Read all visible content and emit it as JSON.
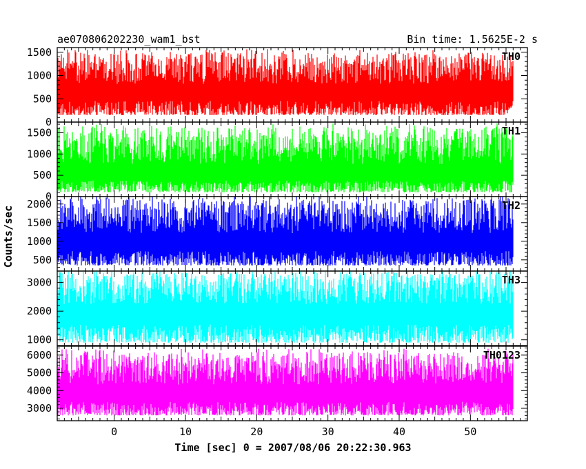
{
  "header": {
    "left_title": "ae070806202230_wam1_bst",
    "right_title": "Bin time: 1.5625E-2 s"
  },
  "xlabel": "Time [sec] 0 = 2007/08/06 20:22:30.963",
  "ylabel": "Counts/sec",
  "chart_data": [
    {
      "type": "line",
      "name": "TH0",
      "color": "#ff0000",
      "xlim": [
        -8,
        58
      ],
      "ylim": [
        0,
        1600
      ],
      "yticks": [
        0,
        500,
        1000,
        1500
      ],
      "ytick_labels": [
        "0",
        "500",
        "1000",
        "1500"
      ],
      "x_start": -8,
      "x_end": 56,
      "bin_time": 0.015625,
      "low": 150,
      "mean": 700,
      "high": 1500
    },
    {
      "type": "line",
      "name": "TH1",
      "color": "#00ff00",
      "xlim": [
        -8,
        58
      ],
      "ylim": [
        0,
        1750
      ],
      "yticks": [
        0,
        500,
        1000,
        1500
      ],
      "ytick_labels": [
        "0",
        "500",
        "1000",
        "1500"
      ],
      "x_start": -8,
      "x_end": 56,
      "bin_time": 0.015625,
      "low": 100,
      "mean": 600,
      "high": 1650
    },
    {
      "type": "line",
      "name": "TH2",
      "color": "#0000ff",
      "xlim": [
        -8,
        58
      ],
      "ylim": [
        200,
        2200
      ],
      "yticks": [
        500,
        1000,
        1500,
        2000
      ],
      "ytick_labels": [
        "500",
        "1000",
        "1500",
        "2000"
      ],
      "x_start": -8,
      "x_end": 56,
      "bin_time": 0.015625,
      "low": 350,
      "mean": 1050,
      "high": 2150
    },
    {
      "type": "line",
      "name": "TH3",
      "color": "#00ffff",
      "xlim": [
        -8,
        58
      ],
      "ylim": [
        800,
        3400
      ],
      "yticks": [
        1000,
        2000,
        3000
      ],
      "ytick_labels": [
        "1000",
        "2000",
        "3000"
      ],
      "x_start": -8,
      "x_end": 56,
      "bin_time": 0.015625,
      "low": 900,
      "mean": 2050,
      "high": 3350
    },
    {
      "type": "line",
      "name": "TH0123",
      "color": "#ff00ff",
      "xlim": [
        -8,
        58
      ],
      "ylim": [
        2300,
        6500
      ],
      "yticks": [
        3000,
        4000,
        5000,
        6000
      ],
      "ytick_labels": [
        "3000",
        "4000",
        "5000",
        "6000"
      ],
      "xticks": [
        0,
        10,
        20,
        30,
        40,
        50
      ],
      "xtick_labels": [
        "0",
        "10",
        "20",
        "30",
        "40",
        "50"
      ],
      "x_start": -8,
      "x_end": 56,
      "bin_time": 0.015625,
      "low": 2600,
      "mean": 4000,
      "high": 6200
    }
  ]
}
